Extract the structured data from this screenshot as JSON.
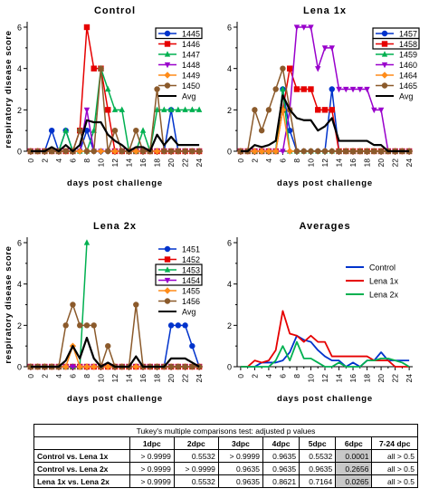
{
  "chart_data": [
    {
      "type": "line",
      "title": "Control",
      "ylabel": "respiratory disease score",
      "xlabel": "days post challenge",
      "x": [
        0,
        1,
        2,
        3,
        4,
        5,
        6,
        7,
        8,
        9,
        10,
        11,
        12,
        13,
        14,
        15,
        16,
        17,
        18,
        19,
        20,
        21,
        22,
        23,
        24
      ],
      "xticks": [
        "0",
        "2",
        "4",
        "6",
        "8",
        "10",
        "12",
        "14",
        "16",
        "18",
        "20",
        "22",
        "24"
      ],
      "yticks": [
        "0",
        "2",
        "4",
        "6"
      ],
      "xlim": [
        -0.5,
        24.5
      ],
      "ylim": [
        0,
        6
      ],
      "legend": "top-right",
      "series": [
        {
          "name": "1445",
          "color": "#0033cc",
          "marker": "circle",
          "boxed": true,
          "values": [
            0,
            0,
            0,
            1,
            0,
            1,
            0,
            0,
            1,
            0,
            0,
            0,
            0,
            0,
            0,
            0,
            0,
            0,
            0,
            0,
            2,
            0,
            0,
            0,
            0
          ]
        },
        {
          "name": "1446",
          "color": "#e60000",
          "marker": "square",
          "boxed": false,
          "values": [
            0,
            0,
            0,
            0,
            0,
            0,
            0,
            1,
            6,
            4,
            4,
            2,
            0,
            0,
            0,
            0,
            0,
            0,
            0,
            0,
            0,
            0,
            0,
            0,
            0
          ]
        },
        {
          "name": "1447",
          "color": "#00b050",
          "marker": "triangle",
          "boxed": false,
          "values": [
            0,
            0,
            0,
            0,
            0,
            1,
            0,
            0,
            0,
            1,
            4,
            3,
            2,
            2,
            0,
            0,
            1,
            0,
            2,
            2,
            2,
            2,
            2,
            2,
            2
          ]
        },
        {
          "name": "1448",
          "color": "#9900cc",
          "marker": "triangle-down",
          "boxed": false,
          "values": [
            0,
            0,
            0,
            0,
            0,
            0,
            0,
            0,
            2,
            0,
            0,
            0,
            0,
            0,
            0,
            0,
            0,
            0,
            0,
            0,
            0,
            0,
            0,
            0,
            0
          ]
        },
        {
          "name": "1449",
          "color": "#ff8c1a",
          "marker": "diamond",
          "boxed": false,
          "values": [
            0,
            0,
            0,
            0,
            0,
            0,
            0,
            0,
            0,
            0,
            0,
            0,
            0,
            0,
            0,
            0,
            0,
            0,
            0,
            0,
            0,
            0,
            0,
            0,
            0
          ]
        },
        {
          "name": "1450",
          "color": "#8b5a2b",
          "marker": "circle",
          "boxed": false,
          "values": [
            0,
            0,
            0,
            0,
            0,
            0,
            0,
            1,
            0,
            0,
            4,
            0,
            1,
            0,
            0,
            1,
            0,
            0,
            3,
            0,
            0,
            0,
            0,
            0,
            0
          ]
        },
        {
          "name": "Avg",
          "color": "#000000",
          "marker": "none",
          "boxed": false,
          "values": [
            0,
            0,
            0,
            0.2,
            0,
            0.3,
            0,
            0.3,
            1.5,
            1.4,
            1.4,
            0.8,
            0.5,
            0.3,
            0,
            0.2,
            0.2,
            0,
            0.8,
            0.3,
            0.7,
            0.3,
            0.3,
            0.3,
            0.3
          ]
        }
      ]
    },
    {
      "type": "line",
      "title": "Lena 1x",
      "ylabel": "",
      "xlabel": "days post challenge",
      "x": [
        0,
        1,
        2,
        3,
        4,
        5,
        6,
        7,
        8,
        9,
        10,
        11,
        12,
        13,
        14,
        15,
        16,
        17,
        18,
        19,
        20,
        21,
        22,
        23,
        24
      ],
      "xticks": [
        "0",
        "2",
        "4",
        "6",
        "8",
        "10",
        "12",
        "14",
        "16",
        "18",
        "20",
        "22",
        "24"
      ],
      "yticks": [
        "0",
        "2",
        "4",
        "6"
      ],
      "xlim": [
        -0.5,
        24.5
      ],
      "ylim": [
        0,
        6
      ],
      "legend": "top-right",
      "series": [
        {
          "name": "1457",
          "color": "#0033cc",
          "marker": "circle",
          "boxed": true,
          "values": [
            0,
            0,
            0,
            0,
            0,
            0,
            3,
            1,
            0,
            0,
            0,
            0,
            0,
            3,
            0,
            0,
            0,
            0,
            0,
            0,
            0,
            0,
            0,
            0,
            0
          ]
        },
        {
          "name": "1458",
          "color": "#e60000",
          "marker": "square",
          "boxed": true,
          "values": [
            0,
            0,
            0,
            0,
            0,
            0,
            2,
            4,
            3,
            3,
            3,
            2,
            2,
            2,
            0,
            0,
            0,
            0,
            0,
            0,
            0,
            0,
            0,
            0,
            0
          ]
        },
        {
          "name": "1459",
          "color": "#00b050",
          "marker": "triangle",
          "boxed": false,
          "values": [
            0,
            0,
            0,
            0,
            0,
            0,
            3,
            0,
            0,
            0,
            0,
            0,
            0,
            0,
            0,
            0,
            0,
            0,
            0,
            0,
            0,
            0,
            0,
            0,
            0
          ]
        },
        {
          "name": "1460",
          "color": "#9900cc",
          "marker": "triangle-down",
          "boxed": false,
          "values": [
            0,
            0,
            0,
            0,
            0,
            0,
            0,
            2,
            6,
            6,
            6,
            4,
            5,
            5,
            3,
            3,
            3,
            3,
            3,
            2,
            2,
            0,
            0,
            0,
            0
          ]
        },
        {
          "name": "1464",
          "color": "#ff8c1a",
          "marker": "diamond",
          "boxed": false,
          "values": [
            0,
            0,
            0,
            0,
            0,
            0,
            2,
            0,
            0,
            0,
            0,
            0,
            0,
            0,
            0,
            0,
            0,
            0,
            0,
            0,
            0,
            0,
            0,
            0,
            0
          ]
        },
        {
          "name": "1465",
          "color": "#8b5a2b",
          "marker": "circle",
          "boxed": false,
          "values": [
            0,
            0,
            2,
            1,
            2,
            3,
            4,
            2,
            0,
            0,
            0,
            0,
            0,
            0,
            0,
            0,
            0,
            0,
            0,
            0,
            0,
            0,
            0,
            0,
            0
          ]
        },
        {
          "name": "Avg",
          "color": "#000000",
          "marker": "none",
          "boxed": false,
          "values": [
            0,
            0,
            0.3,
            0.2,
            0.3,
            0.5,
            2.7,
            2.0,
            1.6,
            1.5,
            1.5,
            1.0,
            1.2,
            1.6,
            0.5,
            0.5,
            0.5,
            0.5,
            0.5,
            0.3,
            0.3,
            0,
            0,
            0,
            0
          ]
        }
      ]
    },
    {
      "type": "line",
      "title": "Lena 2x",
      "ylabel": "respiratory disease score",
      "xlabel": "days post challenge",
      "x": [
        0,
        1,
        2,
        3,
        4,
        5,
        6,
        7,
        8,
        9,
        10,
        11,
        12,
        13,
        14,
        15,
        16,
        17,
        18,
        19,
        20,
        21,
        22,
        23,
        24
      ],
      "xticks": [
        "0",
        "2",
        "4",
        "6",
        "8",
        "10",
        "12",
        "14",
        "16",
        "18",
        "20",
        "22",
        "24"
      ],
      "yticks": [
        "0",
        "2",
        "4",
        "6"
      ],
      "xlim": [
        -0.5,
        24.5
      ],
      "ylim": [
        0,
        6
      ],
      "legend": "top-right",
      "series": [
        {
          "name": "1451",
          "color": "#0033cc",
          "marker": "circle",
          "boxed": false,
          "values": [
            0,
            0,
            0,
            0,
            0,
            0,
            0,
            0,
            0,
            0,
            0,
            0,
            0,
            0,
            0,
            0,
            0,
            0,
            0,
            0,
            2,
            2,
            2,
            1,
            0
          ]
        },
        {
          "name": "1452",
          "color": "#e60000",
          "marker": "square",
          "boxed": false,
          "values": [
            0,
            0,
            0,
            0,
            0,
            0,
            0,
            0,
            0,
            0,
            0,
            0,
            0,
            0,
            0,
            0,
            0,
            0,
            0,
            0,
            0,
            0,
            0,
            0,
            0
          ]
        },
        {
          "name": "1453",
          "color": "#00b050",
          "marker": "triangle",
          "boxed": true,
          "values": [
            0,
            0,
            0,
            0,
            0,
            0,
            0,
            0,
            6,
            null,
            null,
            null,
            null,
            null,
            null,
            null,
            null,
            null,
            null,
            null,
            null,
            null,
            null,
            null,
            null
          ]
        },
        {
          "name": "1454",
          "color": "#9900cc",
          "marker": "triangle-down",
          "boxed": true,
          "values": [
            0,
            0,
            0,
            0,
            0,
            0,
            0,
            0,
            0,
            0,
            0,
            0,
            0,
            0,
            0,
            0,
            0,
            0,
            0,
            0,
            0,
            0,
            0,
            0,
            0
          ]
        },
        {
          "name": "1455",
          "color": "#ff8c1a",
          "marker": "diamond",
          "boxed": false,
          "values": [
            0,
            0,
            0,
            0,
            0,
            0,
            1,
            0,
            0,
            0,
            0,
            0,
            0,
            0,
            0,
            0,
            0,
            0,
            0,
            0,
            0,
            0,
            0,
            0,
            0
          ]
        },
        {
          "name": "1456",
          "color": "#8b5a2b",
          "marker": "circle",
          "boxed": false,
          "values": [
            0,
            0,
            0,
            0,
            0,
            2,
            3,
            2,
            2,
            2,
            0,
            1,
            0,
            0,
            0,
            3,
            0,
            0,
            0,
            0,
            0,
            0,
            0,
            0,
            0
          ]
        },
        {
          "name": "Avg",
          "color": "#000000",
          "marker": "none",
          "boxed": false,
          "values": [
            0,
            0,
            0,
            0,
            0,
            0.3,
            1.0,
            0.4,
            1.4,
            0.4,
            0,
            0.2,
            0,
            0,
            0,
            0.5,
            0,
            0,
            0,
            0,
            0.4,
            0.4,
            0.4,
            0.2,
            0
          ]
        }
      ]
    },
    {
      "type": "line",
      "title": "Averages",
      "ylabel": "",
      "xlabel": "days post challenge",
      "x": [
        0,
        1,
        2,
        3,
        4,
        5,
        6,
        7,
        8,
        9,
        10,
        11,
        12,
        13,
        14,
        15,
        16,
        17,
        18,
        19,
        20,
        21,
        22,
        23,
        24
      ],
      "xticks": [
        "0",
        "2",
        "4",
        "6",
        "8",
        "10",
        "12",
        "14",
        "16",
        "18",
        "20",
        "22",
        "24"
      ],
      "yticks": [
        "0",
        "2",
        "4",
        "6"
      ],
      "xlim": [
        -0.5,
        24.5
      ],
      "ylim": [
        0,
        6
      ],
      "legend": "right",
      "series": [
        {
          "name": "Control",
          "color": "#0033cc",
          "marker": "none",
          "boxed": false,
          "values": [
            0,
            0,
            0,
            0.2,
            0.2,
            0.2,
            0.3,
            0.7,
            1.5,
            1.3,
            1.2,
            0.8,
            0.5,
            0.3,
            0.3,
            0,
            0.2,
            0,
            0.3,
            0.3,
            0.7,
            0.3,
            0.3,
            0.3,
            0.3
          ]
        },
        {
          "name": "Lena 1x",
          "color": "#e60000",
          "marker": "none",
          "boxed": false,
          "values": [
            0,
            0,
            0.3,
            0.2,
            0.3,
            0.8,
            2.7,
            1.6,
            1.5,
            1.2,
            1.5,
            1.2,
            1.2,
            0.5,
            0.5,
            0.5,
            0.5,
            0.5,
            0.5,
            0.3,
            0.3,
            0.3,
            0,
            0,
            0
          ]
        },
        {
          "name": "Lena 2x",
          "color": "#00b050",
          "marker": "none",
          "boxed": false,
          "values": [
            0,
            0,
            0,
            0,
            0,
            0.3,
            1.0,
            0.3,
            1.2,
            0.4,
            0.4,
            0.2,
            0,
            0,
            0.2,
            0,
            0,
            0,
            0.3,
            0.3,
            0.4,
            0.4,
            0.3,
            0.2,
            0
          ]
        }
      ]
    }
  ],
  "stats_table": {
    "caption": "Tukey's multiple comparisons test: adjusted p values",
    "headers": [
      "",
      "1dpc",
      "2dpc",
      "3dpc",
      "4dpc",
      "5dpc",
      "6dpc",
      "7-24 dpc"
    ],
    "rows": [
      {
        "label": "Control vs. Lena 1x",
        "cells": [
          "> 0.9999",
          "0.5532",
          "> 0.9999",
          "0.9635",
          "0.5532",
          "0.0001",
          "all > 0.5"
        ]
      },
      {
        "label": "Control vs. Lena 2x",
        "cells": [
          "> 0.9999",
          "> 0.9999",
          "0.9635",
          "0.9635",
          "0.9635",
          "0.2656",
          "all > 0.5"
        ]
      },
      {
        "label": "Lena 1x vs. Lena 2x",
        "cells": [
          "> 0.9999",
          "0.5532",
          "0.9635",
          "0.8621",
          "0.7164",
          "0.0265",
          "all > 0.5"
        ]
      }
    ],
    "highlight_column": 5
  }
}
